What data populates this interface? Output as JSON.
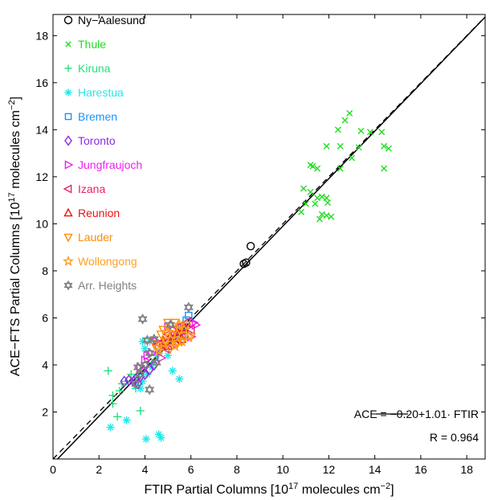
{
  "chart_data": {
    "type": "scatter",
    "xlabel": {
      "pre": "FTIR Partial Columns [10",
      "sup": "17",
      "mid": " molecules cm",
      "sup2": "−2",
      "post": "]"
    },
    "ylabel": {
      "pre": "ACE−FTS Partial Columns [10",
      "sup": "17",
      "mid": " molecules cm",
      "sup2": "−2",
      "post": "]"
    },
    "xlim": [
      0,
      18.8
    ],
    "ylim": [
      0,
      18.9
    ],
    "xticks": [
      0,
      2,
      4,
      6,
      8,
      10,
      12,
      14,
      16,
      18
    ],
    "yticks": [
      2,
      4,
      6,
      8,
      10,
      12,
      14,
      16,
      18
    ],
    "legend_position": "top-left",
    "fit": {
      "intercept": -0.2,
      "slope": 1.01,
      "label": "ACE = −0.20+1.01· FTIR",
      "r_label": "R = 0.964"
    },
    "series": [
      {
        "name": "Ny−Aalesund",
        "marker": "circle",
        "color": "#000000",
        "points": [
          [
            8.3,
            8.3
          ],
          [
            8.4,
            8.35
          ],
          [
            8.6,
            9.05
          ]
        ]
      },
      {
        "name": "Thule",
        "marker": "x",
        "color": "#22dd22",
        "points": [
          [
            12.9,
            14.7
          ],
          [
            12.7,
            14.4
          ],
          [
            13.4,
            13.95
          ],
          [
            13.8,
            13.9
          ],
          [
            14.3,
            13.9
          ],
          [
            12.4,
            14.0
          ],
          [
            11.9,
            13.3
          ],
          [
            12.5,
            13.3
          ],
          [
            13.3,
            13.25
          ],
          [
            14.4,
            13.3
          ],
          [
            14.6,
            13.2
          ],
          [
            13.0,
            12.8
          ],
          [
            11.2,
            12.5
          ],
          [
            11.3,
            12.45
          ],
          [
            11.5,
            12.35
          ],
          [
            12.5,
            12.35
          ],
          [
            14.4,
            12.35
          ],
          [
            10.9,
            11.5
          ],
          [
            11.2,
            11.35
          ],
          [
            11.5,
            11.1
          ],
          [
            11.7,
            11.15
          ],
          [
            11.9,
            11.1
          ],
          [
            11.4,
            10.85
          ],
          [
            11.0,
            10.85
          ],
          [
            11.95,
            10.9
          ],
          [
            10.8,
            10.5
          ],
          [
            11.7,
            10.4
          ],
          [
            11.9,
            10.35
          ],
          [
            12.1,
            10.3
          ],
          [
            11.6,
            10.2
          ]
        ]
      },
      {
        "name": "Kiruna",
        "marker": "plus",
        "color": "#22e07a",
        "points": [
          [
            2.4,
            3.75
          ],
          [
            2.6,
            2.7
          ],
          [
            2.9,
            2.9
          ],
          [
            2.6,
            2.35
          ],
          [
            3.0,
            3.2
          ],
          [
            2.8,
            1.8
          ],
          [
            3.6,
            3.0
          ],
          [
            3.8,
            2.05
          ],
          [
            3.4,
            3.6
          ],
          [
            4.3,
            4.1
          ],
          [
            4.6,
            4.5
          ],
          [
            3.2,
            3.3
          ]
        ]
      },
      {
        "name": "Harestua",
        "marker": "asterisk",
        "color": "#22e8e8",
        "points": [
          [
            2.5,
            1.35
          ],
          [
            3.2,
            1.65
          ],
          [
            4.05,
            0.85
          ],
          [
            4.6,
            1.05
          ],
          [
            4.7,
            0.9
          ],
          [
            3.8,
            3.0
          ],
          [
            3.9,
            3.3
          ],
          [
            4.1,
            3.6
          ],
          [
            4.3,
            3.9
          ],
          [
            4.5,
            4.4
          ],
          [
            4.0,
            4.7
          ],
          [
            3.9,
            5.0
          ],
          [
            4.2,
            5.0
          ],
          [
            5.5,
            3.4
          ],
          [
            5.2,
            3.75
          ],
          [
            5.0,
            4.4
          ],
          [
            4.8,
            4.8
          ],
          [
            5.5,
            5.2
          ],
          [
            3.7,
            3.5
          ],
          [
            3.6,
            3.1
          ]
        ]
      },
      {
        "name": "Bremen",
        "marker": "square",
        "color": "#1e90ff",
        "points": [
          [
            5.6,
            5.6
          ],
          [
            5.8,
            5.9
          ],
          [
            5.9,
            6.1
          ],
          [
            5.5,
            5.4
          ],
          [
            5.7,
            5.2
          ]
        ]
      },
      {
        "name": "Toronto",
        "marker": "diamond",
        "color": "#8a2be2",
        "points": [
          [
            3.1,
            3.3
          ],
          [
            3.3,
            3.35
          ],
          [
            3.5,
            3.3
          ],
          [
            3.7,
            3.2
          ],
          [
            3.8,
            3.5
          ],
          [
            4.0,
            3.6
          ],
          [
            4.2,
            3.8
          ],
          [
            3.6,
            3.4
          ],
          [
            3.9,
            3.8
          ],
          [
            4.4,
            4.0
          ]
        ]
      },
      {
        "name": "Jungfraujoch",
        "marker": "triangle-right",
        "color": "#ee22ee",
        "points": [
          [
            3.8,
            3.9
          ],
          [
            4.0,
            4.2
          ],
          [
            4.3,
            4.5
          ],
          [
            4.6,
            4.7
          ],
          [
            4.9,
            4.9
          ],
          [
            5.2,
            5.3
          ],
          [
            5.5,
            5.5
          ],
          [
            5.8,
            5.6
          ],
          [
            6.1,
            5.8
          ],
          [
            4.5,
            5.0
          ],
          [
            5.0,
            5.6
          ],
          [
            5.3,
            5.1
          ],
          [
            5.7,
            5.4
          ],
          [
            6.0,
            5.2
          ],
          [
            4.1,
            4.4
          ],
          [
            4.7,
            4.3
          ],
          [
            5.4,
            4.9
          ],
          [
            6.2,
            5.7
          ]
        ]
      },
      {
        "name": "Izana",
        "marker": "triangle-left",
        "color": "#e8206e",
        "points": [
          [
            4.6,
            4.9
          ],
          [
            5.0,
            5.3
          ],
          [
            5.4,
            5.6
          ],
          [
            5.8,
            5.8
          ],
          [
            5.2,
            5.1
          ],
          [
            5.6,
            5.3
          ],
          [
            4.9,
            4.7
          ],
          [
            6.0,
            5.5
          ]
        ]
      },
      {
        "name": "Reunion",
        "marker": "triangle-up",
        "color": "#ee1111",
        "points": [
          [
            4.8,
            5.0
          ],
          [
            5.1,
            5.2
          ],
          [
            5.4,
            5.4
          ],
          [
            5.7,
            5.6
          ],
          [
            5.0,
            4.8
          ],
          [
            5.3,
            5.0
          ],
          [
            5.6,
            5.1
          ]
        ]
      },
      {
        "name": "Lauder",
        "marker": "triangle-down",
        "color": "#ff8c00",
        "points": [
          [
            4.6,
            4.7
          ],
          [
            4.9,
            5.0
          ],
          [
            5.2,
            5.3
          ],
          [
            5.5,
            5.5
          ],
          [
            5.8,
            5.7
          ],
          [
            5.0,
            5.8
          ],
          [
            5.3,
            5.8
          ],
          [
            4.7,
            5.3
          ],
          [
            5.6,
            5.0
          ],
          [
            6.0,
            5.2
          ],
          [
            5.1,
            4.7
          ],
          [
            4.4,
            4.9
          ],
          [
            4.8,
            5.5
          ],
          [
            5.4,
            4.9
          ]
        ]
      },
      {
        "name": "Wollongong",
        "marker": "star5",
        "color": "#ffa020",
        "points": [
          [
            4.8,
            4.9
          ],
          [
            5.1,
            5.1
          ],
          [
            5.4,
            5.3
          ],
          [
            5.7,
            5.5
          ],
          [
            5.0,
            5.4
          ],
          [
            5.3,
            4.8
          ],
          [
            5.6,
            5.0
          ],
          [
            5.9,
            5.2
          ],
          [
            4.6,
            4.6
          ],
          [
            5.5,
            5.7
          ]
        ]
      },
      {
        "name": "Arr. Heights",
        "marker": "star6",
        "color": "#808080",
        "points": [
          [
            3.9,
            5.95
          ],
          [
            4.1,
            5.05
          ],
          [
            4.4,
            5.1
          ],
          [
            4.2,
            4.5
          ],
          [
            4.0,
            4.0
          ],
          [
            3.8,
            3.6
          ],
          [
            3.6,
            3.2
          ],
          [
            4.2,
            2.95
          ],
          [
            5.1,
            5.7
          ],
          [
            5.9,
            6.45
          ],
          [
            3.7,
            3.9
          ],
          [
            4.5,
            4.1
          ]
        ]
      }
    ]
  }
}
